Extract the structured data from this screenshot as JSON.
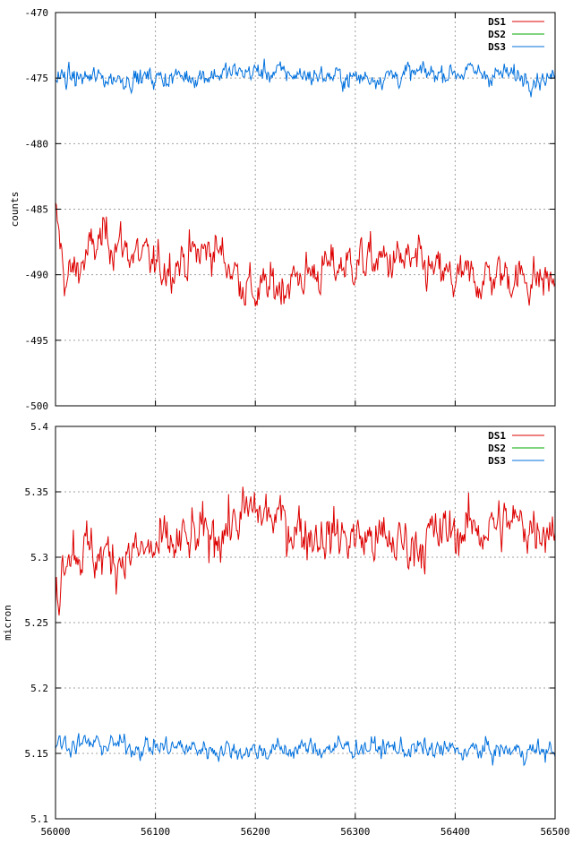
{
  "chart_data": [
    {
      "type": "line",
      "title": "",
      "xlabel": "",
      "ylabel": "counts",
      "xlim": [
        56000,
        56500
      ],
      "ylim": [
        -500,
        -470
      ],
      "xticks": [
        "56000",
        "56100",
        "56200",
        "56300",
        "56400",
        "56500"
      ],
      "xtick_values": [
        56000,
        56100,
        56200,
        56300,
        56400,
        56500
      ],
      "yticks": [
        "-500",
        "-495",
        "-490",
        "-485",
        "-480",
        "-475",
        "-470"
      ],
      "ytick_values": [
        -500,
        -495,
        -490,
        -485,
        -480,
        -475,
        -470
      ],
      "grid": true,
      "legend_position": "top-right",
      "series": [
        {
          "name": "DS1",
          "color": "#dd0000",
          "mean": -489.5,
          "noise": 1.5,
          "key_points": [
            [
              56000,
              -485.5
            ],
            [
              56010,
              -490.5
            ],
            [
              56050,
              -487
            ],
            [
              56100,
              -489.5
            ],
            [
              56160,
              -488
            ],
            [
              56200,
              -491.5
            ],
            [
              56250,
              -490
            ],
            [
              56300,
              -489
            ],
            [
              56350,
              -489
            ],
            [
              56400,
              -490.5
            ],
            [
              56450,
              -490
            ],
            [
              56500,
              -490.5
            ]
          ]
        },
        {
          "name": "DS2",
          "color": "#00aa00",
          "values": []
        },
        {
          "name": "DS3",
          "color": "#0070dd",
          "mean": -474.8,
          "noise": 0.7,
          "key_points": [
            [
              56000,
              -475
            ],
            [
              56100,
              -475
            ],
            [
              56200,
              -474.5
            ],
            [
              56300,
              -475
            ],
            [
              56400,
              -474.5
            ],
            [
              56500,
              -475
            ]
          ]
        }
      ]
    },
    {
      "type": "line",
      "title": "",
      "xlabel": "",
      "ylabel": "micron",
      "xlim": [
        56000,
        56500
      ],
      "ylim": [
        5.1,
        5.4
      ],
      "xticks": [
        "56000",
        "56100",
        "56200",
        "56300",
        "56400",
        "56500"
      ],
      "xtick_values": [
        56000,
        56100,
        56200,
        56300,
        56400,
        56500
      ],
      "yticks": [
        "5.1",
        "5.15",
        "5.2",
        "5.25",
        "5.3",
        "5.35",
        "5.4"
      ],
      "ytick_values": [
        5.1,
        5.15,
        5.2,
        5.25,
        5.3,
        5.35,
        5.4
      ],
      "grid": true,
      "legend_position": "top-right",
      "series": [
        {
          "name": "DS1",
          "color": "#dd0000",
          "mean": 5.315,
          "noise": 0.018,
          "key_points": [
            [
              56000,
              5.265
            ],
            [
              56010,
              5.31
            ],
            [
              56050,
              5.3
            ],
            [
              56100,
              5.305
            ],
            [
              56150,
              5.315
            ],
            [
              56200,
              5.335
            ],
            [
              56250,
              5.32
            ],
            [
              56300,
              5.315
            ],
            [
              56350,
              5.31
            ],
            [
              56400,
              5.32
            ],
            [
              56450,
              5.325
            ],
            [
              56500,
              5.325
            ]
          ]
        },
        {
          "name": "DS2",
          "color": "#00aa00",
          "values": []
        },
        {
          "name": "DS3",
          "color": "#0070dd",
          "mean": 5.155,
          "noise": 0.007,
          "key_points": [
            [
              56000,
              5.158
            ],
            [
              56100,
              5.155
            ],
            [
              56200,
              5.152
            ],
            [
              56300,
              5.155
            ],
            [
              56400,
              5.152
            ],
            [
              56500,
              5.152
            ]
          ]
        }
      ]
    }
  ]
}
